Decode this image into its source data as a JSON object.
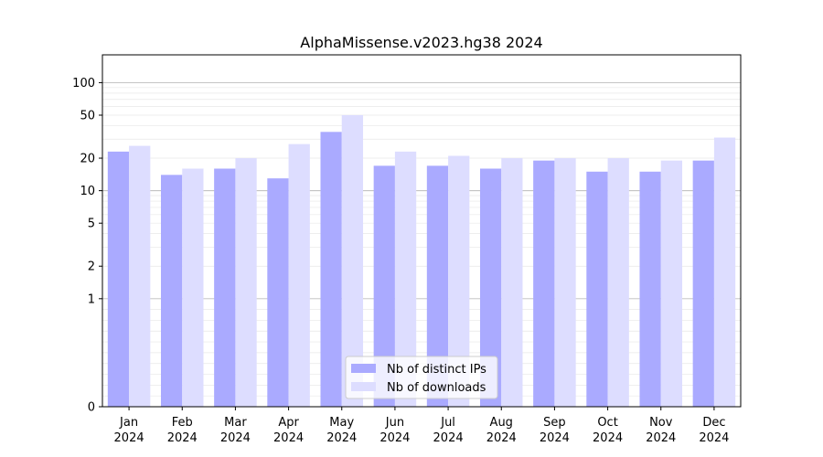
{
  "chart_data": {
    "type": "bar",
    "title": "AlphaMissense.v2023.hg38 2024",
    "xlabel": "",
    "ylabel": "",
    "y_scale": "symlog",
    "ylim": [
      0,
      120
    ],
    "y_ticks": [
      0,
      1,
      2,
      5,
      10,
      20,
      50,
      100
    ],
    "grid": "y (major and minor)",
    "legend_position": "lower-center",
    "categories": [
      [
        "Jan",
        "2024"
      ],
      [
        "Feb",
        "2024"
      ],
      [
        "Mar",
        "2024"
      ],
      [
        "Apr",
        "2024"
      ],
      [
        "May",
        "2024"
      ],
      [
        "Jun",
        "2024"
      ],
      [
        "Jul",
        "2024"
      ],
      [
        "Aug",
        "2024"
      ],
      [
        "Sep",
        "2024"
      ],
      [
        "Oct",
        "2024"
      ],
      [
        "Nov",
        "2024"
      ],
      [
        "Dec",
        "2024"
      ]
    ],
    "series": [
      {
        "name": "Nb of distinct IPs",
        "color": "#aaaaff",
        "values": [
          23,
          14,
          16,
          13,
          35,
          17,
          17,
          16,
          19,
          15,
          15,
          19
        ]
      },
      {
        "name": "Nb of downloads",
        "color": "#ddddff",
        "values": [
          26,
          16,
          20,
          27,
          50,
          23,
          21,
          20,
          20,
          20,
          19,
          31
        ]
      }
    ]
  }
}
